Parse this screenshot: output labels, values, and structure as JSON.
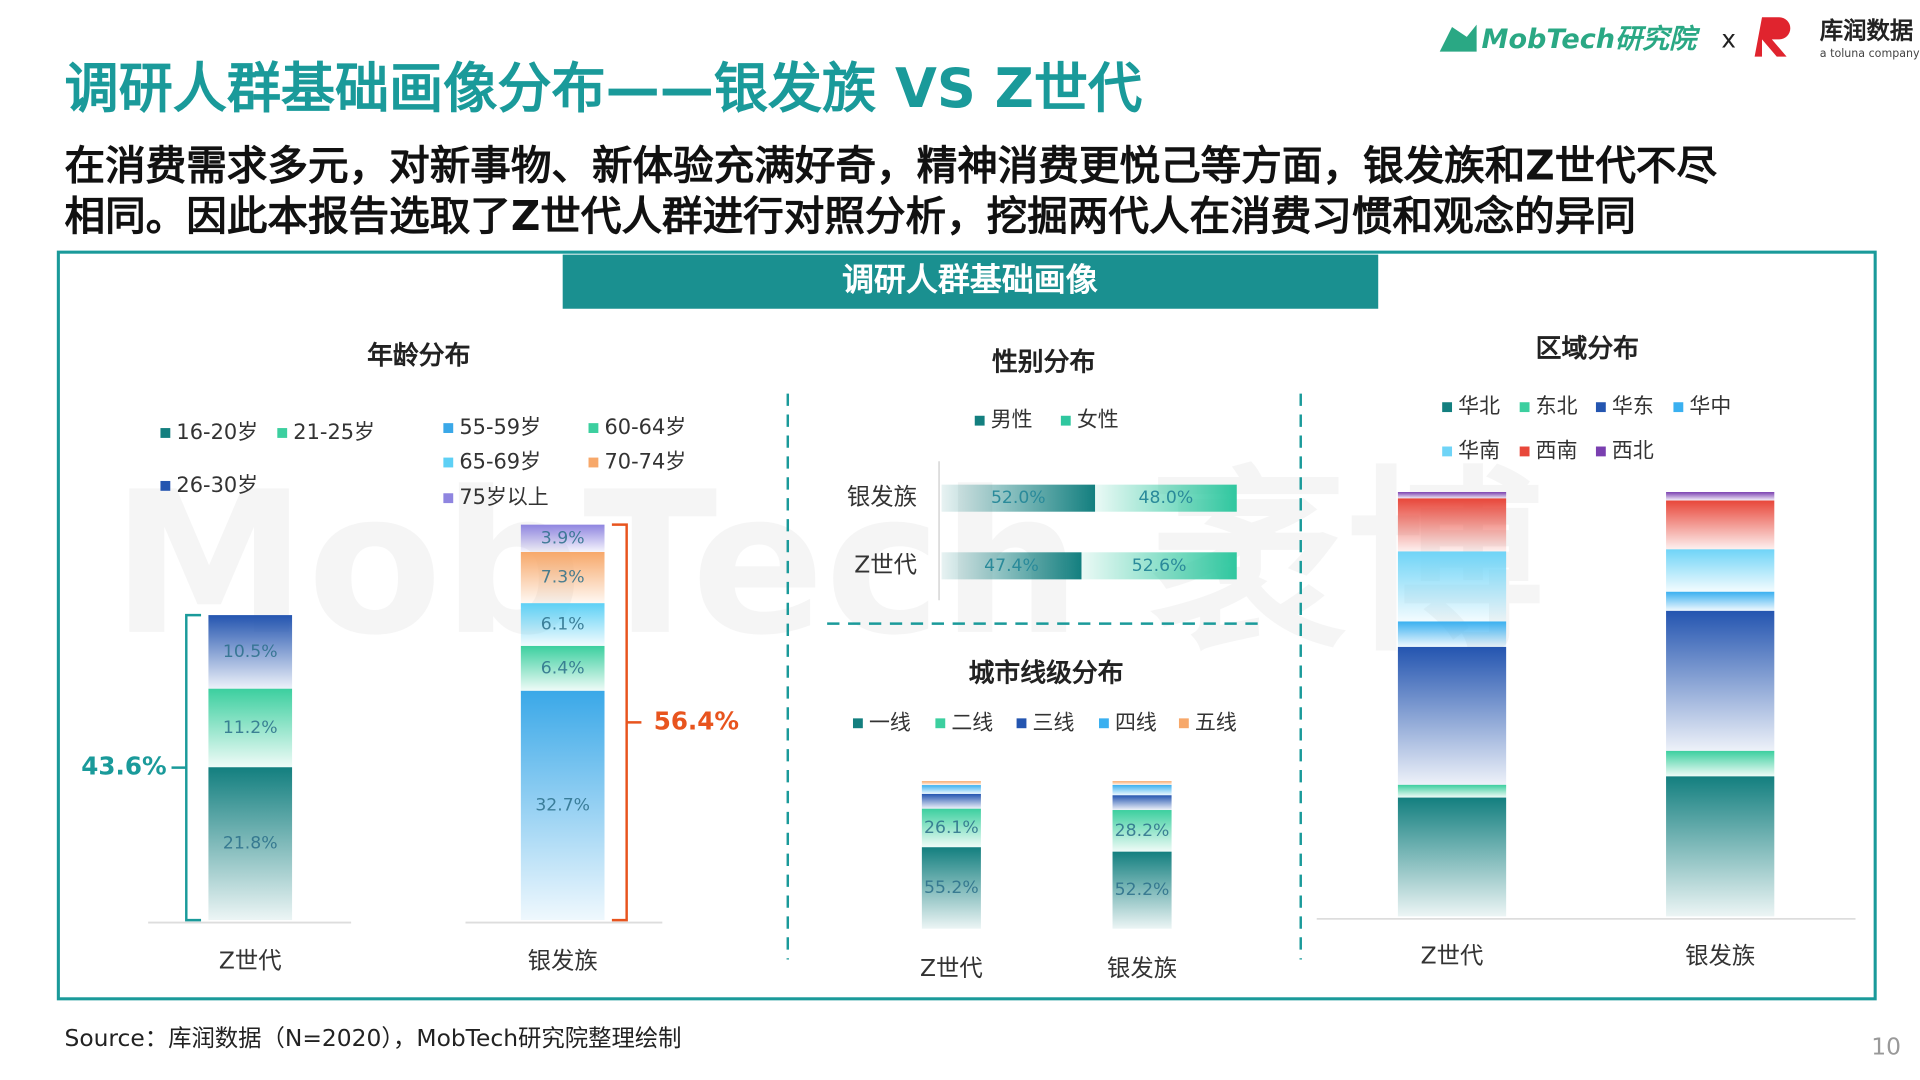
{
  "header": {
    "title": "调研人群基础画像分布——银发族 VS Z世代",
    "subtitle_lines": [
      "在消费需求多元，对新事物、新体验充满好奇，精神消费更悦己等方面，银发族和Z世代不尽",
      "相同。因此本报告选取了Z世代人群进行对照分析，挖掘两代人在消费习惯和观念的异同"
    ],
    "logo_mobtech": "MobTech研究院",
    "logo_x": "x",
    "logo_kurun": "库润数据",
    "logo_kurun_sub": "a toluna company"
  },
  "panel_title": "调研人群基础画像",
  "watermark": "MobTech 袤博",
  "chart_data": [
    {
      "type": "stacked_bar",
      "title": "年龄分布",
      "categories": [
        "Z世代",
        "银发族"
      ],
      "series": [
        {
          "name": "16-20岁",
          "color": "#137f7f",
          "values": [
            21.8,
            null
          ],
          "value_labels": [
            "21.8%",
            null
          ]
        },
        {
          "name": "21-25岁",
          "color": "#3ccf9f",
          "values": [
            11.2,
            null
          ],
          "value_labels": [
            "11.2%",
            null
          ]
        },
        {
          "name": "26-30岁",
          "color": "#2455b0",
          "values": [
            10.5,
            null
          ],
          "value_labels": [
            "10.5%",
            null
          ]
        },
        {
          "name": "55-59岁",
          "color": "#3aa8e8",
          "values": [
            null,
            32.7
          ],
          "value_labels": [
            null,
            "32.7%"
          ]
        },
        {
          "name": "60-64岁",
          "color": "#3ccf9f",
          "values": [
            null,
            6.4
          ],
          "value_labels": [
            null,
            "6.4%"
          ]
        },
        {
          "name": "65-69岁",
          "color": "#5dd0f5",
          "values": [
            null,
            6.1
          ],
          "value_labels": [
            null,
            "6.1%"
          ]
        },
        {
          "name": "70-74岁",
          "color": "#f7a86a",
          "values": [
            null,
            7.3
          ],
          "value_labels": [
            null,
            "7.3%"
          ]
        },
        {
          "name": "75岁以上",
          "color": "#8f85e0",
          "values": [
            null,
            3.9
          ],
          "value_labels": [
            null,
            "3.9%"
          ]
        }
      ],
      "annotations": [
        {
          "text": "43.6%",
          "color": "#1a9a9a"
        },
        {
          "text": "56.4%",
          "color": "#e8541e"
        }
      ]
    },
    {
      "type": "stacked_hbar",
      "title": "性别分布",
      "categories": [
        "银发族",
        "Z世代"
      ],
      "series": [
        {
          "name": "男性",
          "color": "#137f7f",
          "values": [
            52.0,
            47.4
          ],
          "value_labels": [
            "52.0%",
            "47.4%"
          ]
        },
        {
          "name": "女性",
          "color": "#2fc79f",
          "values": [
            48.0,
            52.6
          ],
          "value_labels": [
            "48.0%",
            "52.6%"
          ]
        }
      ]
    },
    {
      "type": "stacked_bar",
      "title": "城市线级分布",
      "categories": [
        "Z世代",
        "银发族"
      ],
      "series": [
        {
          "name": "一线",
          "color": "#137f7f",
          "values": [
            55.2,
            52.2
          ],
          "value_labels": [
            "55.2%",
            "52.2%"
          ]
        },
        {
          "name": "二线",
          "color": "#3ccf9f",
          "values": [
            26.1,
            28.2
          ],
          "value_labels": [
            "26.1%",
            "28.2%"
          ]
        },
        {
          "name": "三线",
          "color": "#2455b0",
          "values": [
            10,
            10
          ],
          "value_labels": [
            null,
            null
          ]
        },
        {
          "name": "四线",
          "color": "#3ab0f0",
          "values": [
            6,
            7
          ],
          "value_labels": [
            null,
            null
          ]
        },
        {
          "name": "五线",
          "color": "#f7a86a",
          "values": [
            2.7,
            2.6
          ],
          "value_labels": [
            null,
            null
          ]
        }
      ]
    },
    {
      "type": "stacked_bar",
      "title": "区域分布",
      "categories": [
        "Z世代",
        "银发族"
      ],
      "series": [
        {
          "name": "华北",
          "color": "#137f7f",
          "values": [
            28,
            33
          ]
        },
        {
          "name": "东北",
          "color": "#3ccf9f",
          "values": [
            3,
            6
          ]
        },
        {
          "name": "华东",
          "color": "#2455b0",
          "values": [
            32.5,
            33
          ]
        },
        {
          "name": "华中",
          "color": "#3ab0f0",
          "values": [
            6,
            4.5
          ]
        },
        {
          "name": "华南",
          "color": "#6fd4f7",
          "values": [
            16.5,
            10
          ]
        },
        {
          "name": "西南",
          "color": "#e8473a",
          "values": [
            12.5,
            11.5
          ]
        },
        {
          "name": "西北",
          "color": "#7a3fb0",
          "values": [
            1.5,
            2
          ]
        }
      ]
    }
  ],
  "footer": {
    "source": "Source：库润数据（N=2020），MobTech研究院整理绘制",
    "page": "10"
  }
}
